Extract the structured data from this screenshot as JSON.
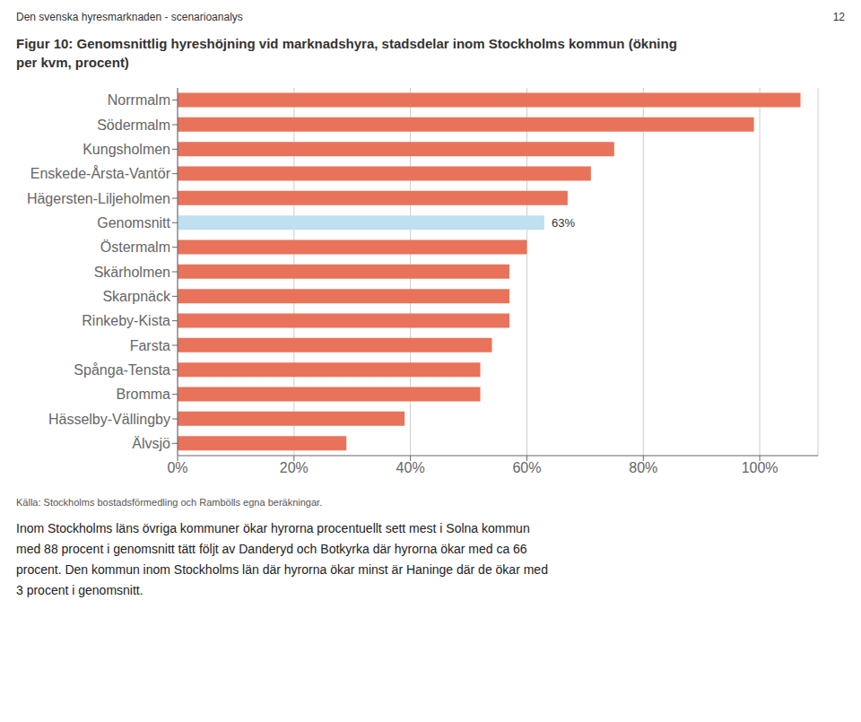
{
  "chart_data": {
    "type": "bar",
    "orientation": "horizontal",
    "header": "Den svenska hyresmarknaden - scenarioanalys",
    "page_number": "12",
    "title": "Figur 10: Genomsnittlig hyreshöjning vid marknadshyra, stadsdelar inom Stockholms kommun (ökning\nper kvm, procent)",
    "categories": [
      "Norrmalm",
      "Södermalm",
      "Kungsholmen",
      "Enskede-Årsta-Vantör",
      "Hägersten-Liljeholmen",
      "Genomsnitt",
      "Östermalm",
      "Skärholmen",
      "Skarpnäck",
      "Rinkeby-Kista",
      "Farsta",
      "Spånga-Tensta",
      "Bromma",
      "Hässelby-Vällingby",
      "Älvsjö"
    ],
    "values": [
      107,
      99,
      75,
      71,
      67,
      63,
      60,
      57,
      57,
      57,
      54,
      52,
      52,
      39,
      29
    ],
    "colors": [
      "#E8735A",
      "#E8735A",
      "#E8735A",
      "#E8735A",
      "#E8735A",
      "#BEE0F0",
      "#E8735A",
      "#E8735A",
      "#E8735A",
      "#E8735A",
      "#E8735A",
      "#E8735A",
      "#E8735A",
      "#E8735A",
      "#E8735A"
    ],
    "annotations": [
      {
        "category": "Genomsnitt",
        "value": 63,
        "text": "63%"
      }
    ],
    "xlim": [
      0,
      110
    ],
    "xticks": [
      {
        "value": 0,
        "label": "0%"
      },
      {
        "value": 20,
        "label": "20%"
      },
      {
        "value": 40,
        "label": "40%"
      },
      {
        "value": 60,
        "label": "60%"
      },
      {
        "value": 80,
        "label": "80%"
      },
      {
        "value": 100,
        "label": "100%"
      }
    ],
    "grid": true,
    "source": "Källa: Stockholms bostadsförmedling och Rambölls egna beräkningar.",
    "body_text": "Inom Stockholms läns övriga kommuner ökar hyrorna procentuellt sett mest i Solna kommun\nmed 88 procent i genomsnitt tätt följt av Danderyd och Botkyrka där hyrorna ökar med ca 66\nprocent. Den kommun inom Stockholms län där hyrorna ökar minst är Haninge där de ökar med\n3 procent i genomsnitt."
  }
}
